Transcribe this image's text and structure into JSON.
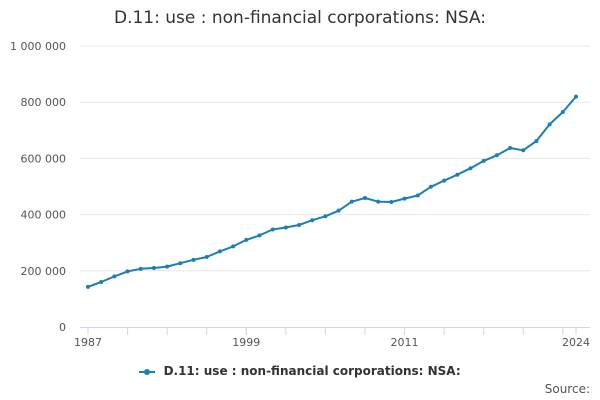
{
  "title": "D.11: use : non-financial corporations: NSA:",
  "source_label": "Source:",
  "colors": {
    "series": "#1a7fb5",
    "grid": "#e6e6e6",
    "axis": "#ccd6eb"
  },
  "chart_data": {
    "type": "line",
    "title": "D.11: use : non-financial corporations: NSA:",
    "xlabel": "",
    "ylabel": "",
    "xlim": [
      1987,
      2024
    ],
    "ylim": [
      0,
      1000000
    ],
    "x_ticks": [
      1987,
      1999,
      2011,
      2024
    ],
    "y_ticks": [
      0,
      200000,
      400000,
      600000,
      800000,
      1000000
    ],
    "y_tick_labels": [
      "0",
      "200 000",
      "400 000",
      "600 000",
      "800 000",
      "1 000 000"
    ],
    "grid": true,
    "legend_position": "bottom",
    "series": [
      {
        "name": "D.11: use : non-financial corporations: NSA:",
        "x": [
          1987,
          1988,
          1989,
          1990,
          1991,
          1992,
          1993,
          1994,
          1995,
          1996,
          1997,
          1998,
          1999,
          2000,
          2001,
          2002,
          2003,
          2004,
          2005,
          2006,
          2007,
          2008,
          2009,
          2010,
          2011,
          2012,
          2013,
          2014,
          2015,
          2016,
          2017,
          2018,
          2019,
          2020,
          2021,
          2022,
          2023,
          2024
        ],
        "values": [
          143000,
          160000,
          180000,
          198000,
          207000,
          210000,
          215000,
          227000,
          239000,
          249000,
          269000,
          287000,
          310000,
          326000,
          347000,
          354000,
          363000,
          380000,
          394000,
          414000,
          446000,
          459000,
          446000,
          445000,
          457000,
          468000,
          499000,
          521000,
          542000,
          565000,
          591000,
          611000,
          637000,
          629000,
          662000,
          721000,
          765000,
          820000
        ]
      }
    ]
  }
}
